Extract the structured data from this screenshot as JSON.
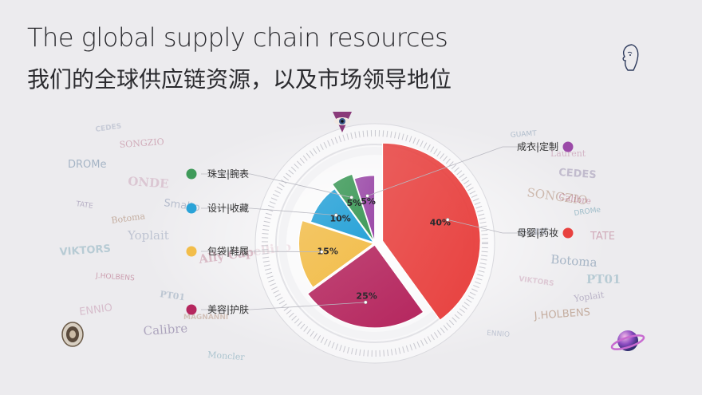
{
  "title": {
    "en": "The global supply chain resources",
    "cn": "我们的全球供应链资源，以及市场领导地位"
  },
  "chart_data": {
    "type": "pie",
    "categories": [
      "母婴|药妆",
      "美容|护肤",
      "包袋|鞋履",
      "设计|收藏",
      "珠宝|腕表",
      "成衣|定制"
    ],
    "values": [
      40,
      25,
      15,
      10,
      5,
      5
    ],
    "value_labels": [
      "40%",
      "25%",
      "15%",
      "10%",
      "5%",
      "5%"
    ],
    "colors": [
      "#e8413f",
      "#b5265e",
      "#f2bd4a",
      "#2aa3d8",
      "#3f9a5a",
      "#9b4aa8"
    ]
  },
  "logo_cloud": [
    "CEDES",
    "SONGZIO",
    "DROMe",
    "ONDE",
    "TATE",
    "Botoma",
    "VIKTORS",
    "Yoplait",
    "J.HOLBENS",
    "PT01",
    "ENNIO",
    "Calibre",
    "MAGNANNI",
    "Moncler",
    "Smalto",
    "Ally Capellino",
    "GUAMT",
    "Laurent"
  ],
  "icons": {
    "top_right": "face-profile-icon",
    "bottom_right": "planet-icon",
    "bottom_left": "medallion-icon",
    "top_center": "eye-icon"
  }
}
